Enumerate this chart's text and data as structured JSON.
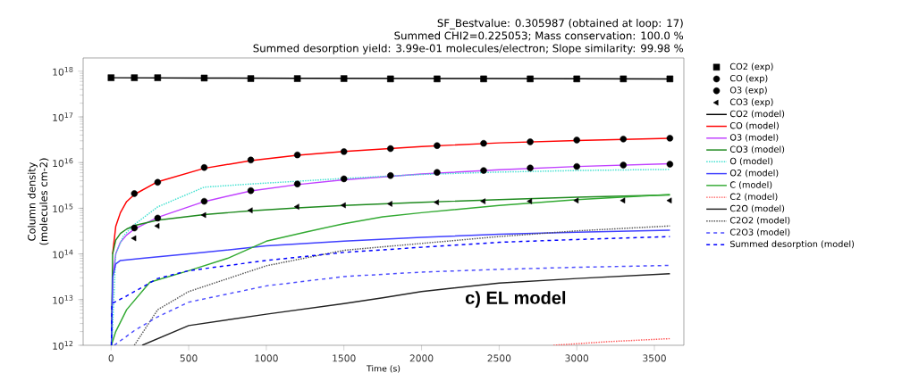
{
  "chart_data": {
    "type": "line",
    "title": "SF_Bestvalue: 0.305987 (obtained at loop: 17)",
    "subtitle": "Summed CHI2=0.225053; Mass conservation: 100.0 %",
    "annotations": [
      "Summed desorption yield: 3.99e-01 molecules/electron; Slope similarity: 99.98 %",
      "c) EL model"
    ],
    "xlabel": "Time (s)",
    "ylabel": "Column density (molecules cm-2)",
    "log": "y",
    "grid": false,
    "legend": "right",
    "xlim": [
      -180,
      3690
    ],
    "xticks": [
      0,
      500,
      1000,
      1500,
      2000,
      2500,
      3000,
      3500
    ],
    "ylim": [
      1000000000000.0,
      1.95e+18
    ],
    "yticks": [
      {
        "value": 1000000000000.0,
        "label": "10$^{12}$"
      },
      {
        "value": 10000000000000.0,
        "label": "10$^{13}$"
      },
      {
        "value": 100000000000000.0,
        "label": "10$^{14}$"
      },
      {
        "value": 1000000000000000.0,
        "label": "10$^{15}$"
      },
      {
        "value": 1e+16,
        "label": "10$^{16}$"
      },
      {
        "value": 1e+17,
        "label": "10$^{17}$"
      },
      {
        "value": 1e+18,
        "label": "10$^{18}$"
      }
    ],
    "series": [
      {
        "name": "CO2 (exp)",
        "type": "scatter",
        "marker": "square",
        "color": "#000000",
        "x": [
          0,
          150,
          300,
          600,
          900,
          1200,
          1500,
          1800,
          2100,
          2400,
          2700,
          3000,
          3300,
          3600
        ],
        "values": [
          7.2e+17,
          7.2e+17,
          7.2e+17,
          7.1e+17,
          6.9e+17,
          6.9e+17,
          6.9e+17,
          6.8e+17,
          6.8e+17,
          6.8e+17,
          6.8e+17,
          6.8e+17,
          6.8e+17,
          6.8e+17
        ]
      },
      {
        "name": "CO (exp)",
        "type": "scatter",
        "marker": "circle",
        "color": "#000000",
        "x": [
          150,
          300,
          600,
          900,
          1200,
          1500,
          1800,
          2100,
          2400,
          2700,
          3000,
          3300,
          3600
        ],
        "values": [
          2100000000000000.0,
          3700000000000000.0,
          7800000000000000.0,
          1.14e+16,
          1.47e+16,
          1.74e+16,
          2.02e+16,
          2.35e+16,
          2.64e+16,
          2.85e+16,
          3.12e+16,
          3.27e+16,
          3.42e+16
        ]
      },
      {
        "name": "O3 (exp)",
        "type": "scatter",
        "marker": "circle",
        "color": "#000000",
        "x": [
          150,
          300,
          600,
          900,
          1200,
          1500,
          1800,
          2100,
          2400,
          2700,
          3000,
          3300,
          3600
        ],
        "values": [
          370000000000000.0,
          610000000000000.0,
          1420000000000000.0,
          2430000000000000.0,
          3400000000000000.0,
          4400000000000000.0,
          5200000000000000.0,
          6100000000000000.0,
          6700000000000000.0,
          7600000000000000.0,
          8200000000000000.0,
          8800000000000000.0,
          9200000000000000.0
        ]
      },
      {
        "name": "CO3 (exp)",
        "type": "scatter",
        "marker": "triangle",
        "color": "#000000",
        "x": [
          150,
          300,
          600,
          900,
          1200,
          1500,
          1800,
          2100,
          2400,
          2700,
          3000,
          3300,
          3600
        ],
        "values": [
          220000000000000.0,
          410000000000000.0,
          710000000000000.0,
          900000000000000.0,
          1080000000000000.0,
          1160000000000000.0,
          1250000000000000.0,
          1350000000000000.0,
          1420000000000000.0,
          1420000000000000.0,
          1480000000000000.0,
          1480000000000000.0,
          1480000000000000.0
        ]
      },
      {
        "name": "CO2 (model)",
        "line_style": "solid",
        "color": "#000000",
        "x": [
          0,
          600,
          1200,
          2400,
          3600
        ],
        "values": [
          7.2e+17,
          7.1e+17,
          7e+17,
          6.9e+17,
          6.8e+17
        ]
      },
      {
        "name": "CO (model)",
        "line_style": "solid",
        "color": "#ff0000",
        "x": [
          10,
          30,
          60,
          100,
          150,
          300,
          600,
          900,
          1200,
          1500,
          2000,
          2500,
          3000,
          3600
        ],
        "values": [
          100000000000000.0,
          400000000000000.0,
          800000000000000.0,
          1400000000000000.0,
          2000000000000000.0,
          3800000000000000.0,
          7500000000000000.0,
          1.1e+16,
          1.45e+16,
          1.75e+16,
          2.25e+16,
          2.7e+16,
          3.05e+16,
          3.4e+16
        ]
      },
      {
        "name": "O3 (model)",
        "line_style": "solid",
        "color": "#c040ff",
        "x": [
          2,
          10,
          30,
          60,
          100,
          150,
          300,
          600,
          900,
          1200,
          1500,
          2000,
          2500,
          3000,
          3600
        ],
        "values": [
          1000000000000.0,
          30000000000000.0,
          100000000000000.0,
          180000000000000.0,
          260000000000000.0,
          350000000000000.0,
          630000000000000.0,
          1400000000000000.0,
          2400000000000000.0,
          3300000000000000.0,
          4200000000000000.0,
          5600000000000000.0,
          7000000000000000.0,
          8200000000000000.0,
          9400000000000000.0
        ]
      },
      {
        "name": "CO3 (model)",
        "line_style": "solid",
        "color": "#1f8a1f",
        "x": [
          2,
          10,
          30,
          60,
          100,
          150,
          300,
          600,
          900,
          1200,
          1500,
          2000,
          2500,
          3000,
          3600
        ],
        "values": [
          1000000000000.0,
          100000000000000.0,
          200000000000000.0,
          280000000000000.0,
          350000000000000.0,
          420000000000000.0,
          550000000000000.0,
          730000000000000.0,
          880000000000000.0,
          1020000000000000.0,
          1150000000000000.0,
          1350000000000000.0,
          1550000000000000.0,
          1750000000000000.0,
          1950000000000000.0
        ]
      },
      {
        "name": "O (model)",
        "line_style": "dotted",
        "color": "#40e0d0",
        "x": [
          5,
          30,
          80,
          150,
          300,
          600,
          900,
          1200,
          1500,
          2000,
          2500,
          3000,
          3600
        ],
        "values": [
          1000000000000.0,
          100000000000000.0,
          250000000000000.0,
          440000000000000.0,
          1070000000000000.0,
          2900000000000000.0,
          3400000000000000.0,
          3900000000000000.0,
          4500000000000000.0,
          5500000000000000.0,
          6200000000000000.0,
          6700000000000000.0,
          7100000000000000.0
        ]
      },
      {
        "name": "O2 (model)",
        "line_style": "solid",
        "color": "#4040ff",
        "x": [
          2,
          10,
          30,
          60,
          200,
          500,
          1000,
          1500,
          2000,
          2500,
          3000,
          3600
        ],
        "values": [
          1000000000000.0,
          30000000000000.0,
          60000000000000.0,
          72000000000000.0,
          80000000000000.0,
          100000000000000.0,
          150000000000000.0,
          190000000000000.0,
          230000000000000.0,
          270000000000000.0,
          300000000000000.0,
          330000000000000.0
        ]
      },
      {
        "name": "C (model)",
        "line_style": "solid",
        "color": "#33aa33",
        "x": [
          2,
          30,
          100,
          250,
          500,
          750,
          1000,
          1250,
          1500,
          1750,
          2000,
          2500,
          3000,
          3600
        ],
        "values": [
          1000000000000.0,
          2000000000000.0,
          6000000000000.0,
          24000000000000.0,
          43000000000000.0,
          80000000000000.0,
          190000000000000.0,
          300000000000000.0,
          460000000000000.0,
          650000000000000.0,
          800000000000000.0,
          1150000000000000.0,
          1550000000000000.0,
          2000000000000000.0
        ]
      },
      {
        "name": "C2 (model)",
        "line_style": "dotted",
        "color": "#ff5555",
        "x": [
          2850,
          3200,
          3600
        ],
        "values": [
          1000000000000.0,
          1200000000000.0,
          1400000000000.0
        ]
      },
      {
        "name": "C2O (model)",
        "line_style": "solid",
        "color": "#222222",
        "x": [
          200,
          500,
          1000,
          1500,
          1750,
          2000,
          2500,
          3000,
          3600
        ],
        "values": [
          1000000000000.0,
          2700000000000.0,
          4800000000000.0,
          8200000000000.0,
          11000000000000.0,
          15000000000000.0,
          23000000000000.0,
          29000000000000.0,
          37000000000000.0
        ]
      },
      {
        "name": "C2O2 (model)",
        "line_style": "dotted",
        "color": "#555555",
        "x": [
          150,
          300,
          500,
          1000,
          1500,
          2000,
          2500,
          3000,
          3600
        ],
        "values": [
          1000000000000.0,
          6000000000000.0,
          15000000000000.0,
          55000000000000.0,
          120000000000000.0,
          170000000000000.0,
          240000000000000.0,
          320000000000000.0,
          410000000000000.0
        ]
      },
      {
        "name": "C2O3 (model)",
        "line_style": "dashed",
        "color": "#4d4dff",
        "x": [
          20,
          150,
          300,
          500,
          1000,
          1500,
          2000,
          2500,
          3000,
          3600
        ],
        "values": [
          1000000000000.0,
          2100000000000.0,
          4200000000000.0,
          8800000000000.0,
          20000000000000.0,
          32000000000000.0,
          40000000000000.0,
          46000000000000.0,
          51000000000000.0,
          56000000000000.0
        ]
      },
      {
        "name": "Summed desorption (model)",
        "line_style": "dashed",
        "color": "#0000ff",
        "x": [
          2,
          5,
          100,
          300,
          500,
          1000,
          1500,
          2000,
          2500,
          3000,
          3600
        ],
        "values": [
          1000000000000.0,
          8200000000000.0,
          12000000000000.0,
          29000000000000.0,
          43000000000000.0,
          72000000000000.0,
          108000000000000.0,
          140000000000000.0,
          180000000000000.0,
          207000000000000.0,
          240000000000000.0
        ]
      }
    ]
  }
}
